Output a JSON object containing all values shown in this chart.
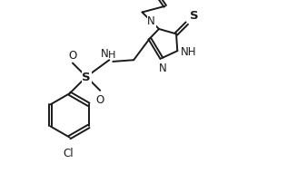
{
  "background_color": "#ffffff",
  "line_color": "#1a1a1a",
  "line_width": 1.4,
  "font_size": 8.5,
  "fig_width": 3.38,
  "fig_height": 2.03,
  "dpi": 100,
  "xlim": [
    0.0,
    9.5
  ],
  "ylim": [
    0.0,
    6.0
  ]
}
